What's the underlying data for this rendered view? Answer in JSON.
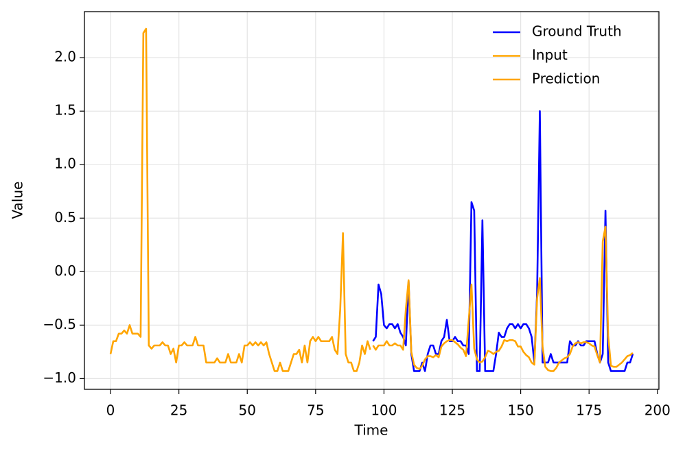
{
  "chart_data": {
    "type": "line",
    "x_label": "Time",
    "y_label": "Value",
    "x": [
      0,
      1,
      2,
      3,
      4,
      5,
      6,
      7,
      8,
      9,
      10,
      11,
      12,
      13,
      14,
      15,
      16,
      17,
      18,
      19,
      20,
      21,
      22,
      23,
      24,
      25,
      26,
      27,
      28,
      29,
      30,
      31,
      32,
      33,
      34,
      35,
      36,
      37,
      38,
      39,
      40,
      41,
      42,
      43,
      44,
      45,
      46,
      47,
      48,
      49,
      50,
      51,
      52,
      53,
      54,
      55,
      56,
      57,
      58,
      59,
      60,
      61,
      62,
      63,
      64,
      65,
      66,
      67,
      68,
      69,
      70,
      71,
      72,
      73,
      74,
      75,
      76,
      77,
      78,
      79,
      80,
      81,
      82,
      83,
      84,
      85,
      86,
      87,
      88,
      89,
      90,
      91,
      92,
      93,
      94,
      95,
      96,
      97,
      98,
      99,
      100,
      101,
      102,
      103,
      104,
      105,
      106,
      107,
      108,
      109,
      110,
      111,
      112,
      113,
      114,
      115,
      116,
      117,
      118,
      119,
      120,
      121,
      122,
      123,
      124,
      125,
      126,
      127,
      128,
      129,
      130,
      131,
      132,
      133,
      134,
      135,
      136,
      137,
      138,
      139,
      140,
      141,
      142,
      143,
      144,
      145,
      146,
      147,
      148,
      149,
      150,
      151,
      152,
      153,
      154,
      155,
      156,
      157,
      158,
      159,
      160,
      161,
      162,
      163,
      164,
      165,
      166,
      167,
      168,
      169,
      170,
      171,
      172,
      173,
      174,
      175,
      176,
      177,
      178,
      179,
      180,
      181,
      182,
      183,
      184,
      185,
      186,
      187,
      188,
      189,
      190,
      191
    ],
    "series": [
      {
        "name": "Ground Truth",
        "color": "#0000ff",
        "values": [
          null,
          null,
          null,
          null,
          null,
          null,
          null,
          null,
          null,
          null,
          null,
          null,
          null,
          null,
          null,
          null,
          null,
          null,
          null,
          null,
          null,
          null,
          null,
          null,
          null,
          null,
          null,
          null,
          null,
          null,
          null,
          null,
          null,
          null,
          null,
          null,
          null,
          null,
          null,
          null,
          null,
          null,
          null,
          null,
          null,
          null,
          null,
          null,
          null,
          null,
          null,
          null,
          null,
          null,
          null,
          null,
          null,
          null,
          null,
          null,
          null,
          null,
          null,
          null,
          null,
          null,
          null,
          null,
          null,
          null,
          null,
          null,
          null,
          null,
          null,
          null,
          null,
          null,
          null,
          null,
          null,
          null,
          null,
          null,
          null,
          null,
          null,
          null,
          null,
          null,
          null,
          null,
          null,
          null,
          null,
          null,
          -0.65,
          -0.61,
          -0.12,
          -0.21,
          -0.5,
          -0.53,
          -0.49,
          -0.49,
          -0.53,
          -0.49,
          -0.57,
          -0.61,
          -0.69,
          -0.09,
          -0.77,
          -0.93,
          -0.93,
          -0.93,
          -0.85,
          -0.93,
          -0.77,
          -0.69,
          -0.69,
          -0.77,
          -0.77,
          -0.65,
          -0.61,
          -0.45,
          -0.65,
          -0.65,
          -0.61,
          -0.65,
          -0.65,
          -0.69,
          -0.69,
          -0.77,
          0.65,
          0.57,
          -0.93,
          -0.93,
          0.48,
          -0.93,
          -0.93,
          -0.93,
          -0.93,
          -0.77,
          -0.57,
          -0.61,
          -0.61,
          -0.53,
          -0.49,
          -0.49,
          -0.53,
          -0.49,
          -0.53,
          -0.49,
          -0.49,
          -0.53,
          -0.61,
          -0.85,
          -0.2,
          1.5,
          -0.85,
          -0.85,
          -0.85,
          -0.77,
          -0.85,
          -0.85,
          -0.85,
          -0.85,
          -0.85,
          -0.85,
          -0.65,
          -0.69,
          -0.69,
          -0.65,
          -0.69,
          -0.69,
          -0.65,
          -0.65,
          -0.65,
          -0.65,
          -0.77,
          -0.85,
          -0.77,
          0.57,
          -0.85,
          -0.93,
          -0.93,
          -0.93,
          -0.93,
          -0.93,
          -0.93,
          -0.85,
          -0.85,
          -0.77
        ]
      },
      {
        "name": "Input",
        "color": "#ffa500",
        "values": [
          -0.77,
          -0.65,
          -0.65,
          -0.58,
          -0.58,
          -0.55,
          -0.58,
          -0.5,
          -0.58,
          -0.58,
          -0.58,
          -0.61,
          2.23,
          2.27,
          -0.69,
          -0.72,
          -0.69,
          -0.69,
          -0.69,
          -0.66,
          -0.69,
          -0.69,
          -0.77,
          -0.72,
          -0.85,
          -0.69,
          -0.69,
          -0.66,
          -0.69,
          -0.69,
          -0.69,
          -0.61,
          -0.69,
          -0.69,
          -0.69,
          -0.85,
          -0.85,
          -0.85,
          -0.85,
          -0.81,
          -0.85,
          -0.85,
          -0.85,
          -0.77,
          -0.85,
          -0.85,
          -0.85,
          -0.77,
          -0.85,
          -0.69,
          -0.69,
          -0.66,
          -0.69,
          -0.66,
          -0.69,
          -0.66,
          -0.69,
          -0.66,
          -0.77,
          -0.85,
          -0.93,
          -0.93,
          -0.85,
          -0.93,
          -0.93,
          -0.93,
          -0.85,
          -0.77,
          -0.77,
          -0.73,
          -0.85,
          -0.69,
          -0.85,
          -0.65,
          -0.61,
          -0.65,
          -0.61,
          -0.65,
          -0.65,
          -0.65,
          -0.65,
          -0.61,
          -0.73,
          -0.77,
          -0.35,
          0.36,
          -0.77,
          -0.85,
          -0.85,
          -0.93,
          -0.93,
          -0.85,
          -0.69,
          -0.77,
          -0.65,
          -0.73,
          null,
          null,
          null,
          null,
          null,
          null,
          null,
          null,
          null,
          null,
          null,
          null,
          null,
          null,
          null,
          null,
          null,
          null,
          null,
          null,
          null,
          null,
          null,
          null,
          null,
          null,
          null,
          null,
          null,
          null,
          null,
          null,
          null,
          null,
          null,
          null,
          null,
          null,
          null,
          null,
          null,
          null,
          null,
          null,
          null,
          null,
          null,
          null,
          null,
          null,
          null,
          null,
          null,
          null,
          null,
          null,
          null,
          null,
          null,
          null,
          null,
          null,
          null,
          null,
          null,
          null,
          null,
          null,
          null,
          null,
          null,
          null,
          null,
          null,
          null,
          null,
          null,
          null,
          null,
          null,
          null,
          null,
          null,
          null,
          null,
          null,
          null,
          null,
          null,
          null,
          null,
          null,
          null,
          null,
          null,
          null
        ]
      },
      {
        "name": "Prediction",
        "color": "#ffa500",
        "values": [
          null,
          null,
          null,
          null,
          null,
          null,
          null,
          null,
          null,
          null,
          null,
          null,
          null,
          null,
          null,
          null,
          null,
          null,
          null,
          null,
          null,
          null,
          null,
          null,
          null,
          null,
          null,
          null,
          null,
          null,
          null,
          null,
          null,
          null,
          null,
          null,
          null,
          null,
          null,
          null,
          null,
          null,
          null,
          null,
          null,
          null,
          null,
          null,
          null,
          null,
          null,
          null,
          null,
          null,
          null,
          null,
          null,
          null,
          null,
          null,
          null,
          null,
          null,
          null,
          null,
          null,
          null,
          null,
          null,
          null,
          null,
          null,
          null,
          null,
          null,
          null,
          null,
          null,
          null,
          null,
          null,
          null,
          null,
          null,
          null,
          null,
          null,
          null,
          null,
          null,
          null,
          null,
          null,
          null,
          null,
          null,
          -0.69,
          -0.73,
          -0.69,
          -0.69,
          -0.69,
          -0.65,
          -0.69,
          -0.69,
          -0.67,
          -0.69,
          -0.69,
          -0.73,
          -0.35,
          -0.08,
          -0.75,
          -0.87,
          -0.9,
          -0.91,
          -0.88,
          -0.82,
          -0.79,
          -0.79,
          -0.8,
          -0.78,
          -0.8,
          -0.7,
          -0.67,
          -0.65,
          -0.64,
          -0.64,
          -0.66,
          -0.68,
          -0.71,
          -0.73,
          -0.79,
          -0.45,
          -0.12,
          -0.72,
          -0.82,
          -0.85,
          -0.84,
          -0.8,
          -0.74,
          -0.75,
          -0.77,
          -0.75,
          -0.74,
          -0.7,
          -0.64,
          -0.65,
          -0.64,
          -0.64,
          -0.65,
          -0.7,
          -0.7,
          -0.75,
          -0.78,
          -0.8,
          -0.85,
          -0.87,
          -0.25,
          -0.06,
          -0.7,
          -0.89,
          -0.92,
          -0.93,
          -0.93,
          -0.9,
          -0.85,
          -0.83,
          -0.81,
          -0.8,
          -0.77,
          -0.7,
          -0.67,
          -0.66,
          -0.67,
          -0.66,
          -0.66,
          -0.67,
          -0.69,
          -0.7,
          -0.78,
          -0.85,
          0.28,
          0.42,
          -0.6,
          -0.88,
          -0.89,
          -0.89,
          -0.87,
          -0.85,
          -0.82,
          -0.79,
          -0.78,
          -0.76
        ]
      }
    ],
    "xlim": [
      -9.55,
      200.55
    ],
    "ylim": [
      -1.1,
      2.43
    ],
    "xticks": [
      0,
      25,
      50,
      75,
      100,
      125,
      150,
      175,
      200
    ],
    "yticks": [
      {
        "value": -1.0,
        "label": "−1.0"
      },
      {
        "value": -0.5,
        "label": "−0.5"
      },
      {
        "value": 0.0,
        "label": "0.0"
      },
      {
        "value": 0.5,
        "label": "0.5"
      },
      {
        "value": 1.0,
        "label": "1.0"
      },
      {
        "value": 1.5,
        "label": "1.5"
      },
      {
        "value": 2.0,
        "label": "2.0"
      }
    ],
    "grid": true,
    "legend": "upper right"
  }
}
